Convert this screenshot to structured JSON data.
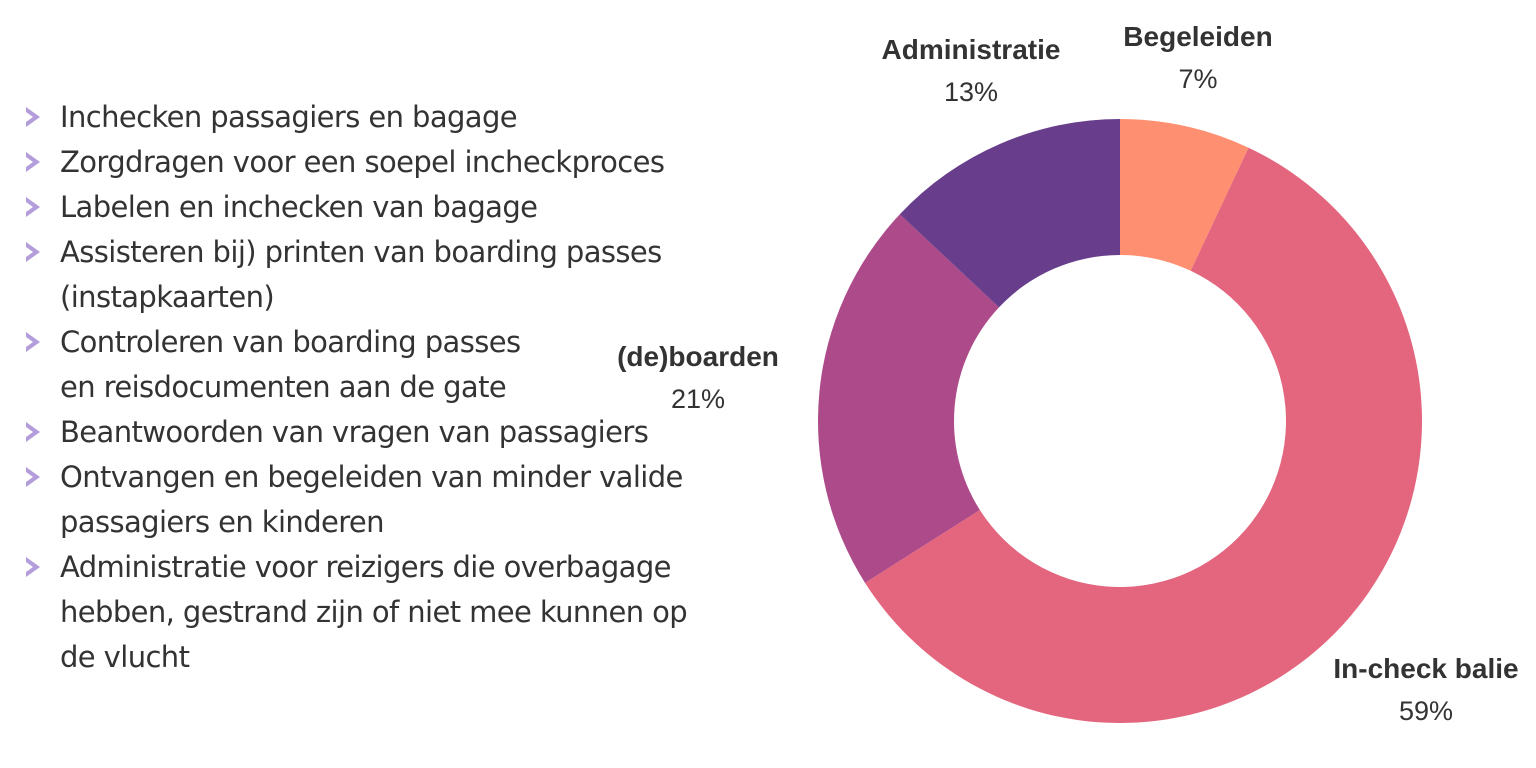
{
  "tasks": [
    {
      "lines": [
        "Inchecken passagiers en bagage"
      ]
    },
    {
      "lines": [
        "Zorgdragen voor een soepel incheckproces"
      ]
    },
    {
      "lines": [
        "Labelen en inchecken van bagage"
      ]
    },
    {
      "lines": [
        "Assisteren bij) printen van boarding passes",
        "(instapkaarten)"
      ]
    },
    {
      "lines": [
        "Controleren van boarding passes",
        "en reisdocumenten aan de gate"
      ]
    },
    {
      "lines": [
        "Beantwoorden van vragen van passagiers"
      ]
    },
    {
      "lines": [
        "Ontvangen en begeleiden van minder valide",
        "passagiers en kinderen"
      ]
    },
    {
      "lines": [
        "Administratie voor reizigers die overbagage",
        "hebben, gestrand zijn of niet mee kunnen op",
        "de vlucht"
      ]
    }
  ],
  "bullet_icon": "chevron-right-icon",
  "bullet_color": "#b39ddb",
  "chart_data": {
    "type": "pie",
    "donut": true,
    "slices": [
      {
        "label": "Begeleiden",
        "value": 7,
        "value_label": "7%",
        "color": "#fe8f70"
      },
      {
        "label": "In-check balie",
        "value": 59,
        "value_label": "59%",
        "color": "#e3667e"
      },
      {
        "label": "(de)boarden",
        "value": 21,
        "value_label": "21%",
        "color": "#ad4a8a"
      },
      {
        "label": "Administratie",
        "value": 13,
        "value_label": "13%",
        "color": "#673d8c"
      }
    ]
  }
}
